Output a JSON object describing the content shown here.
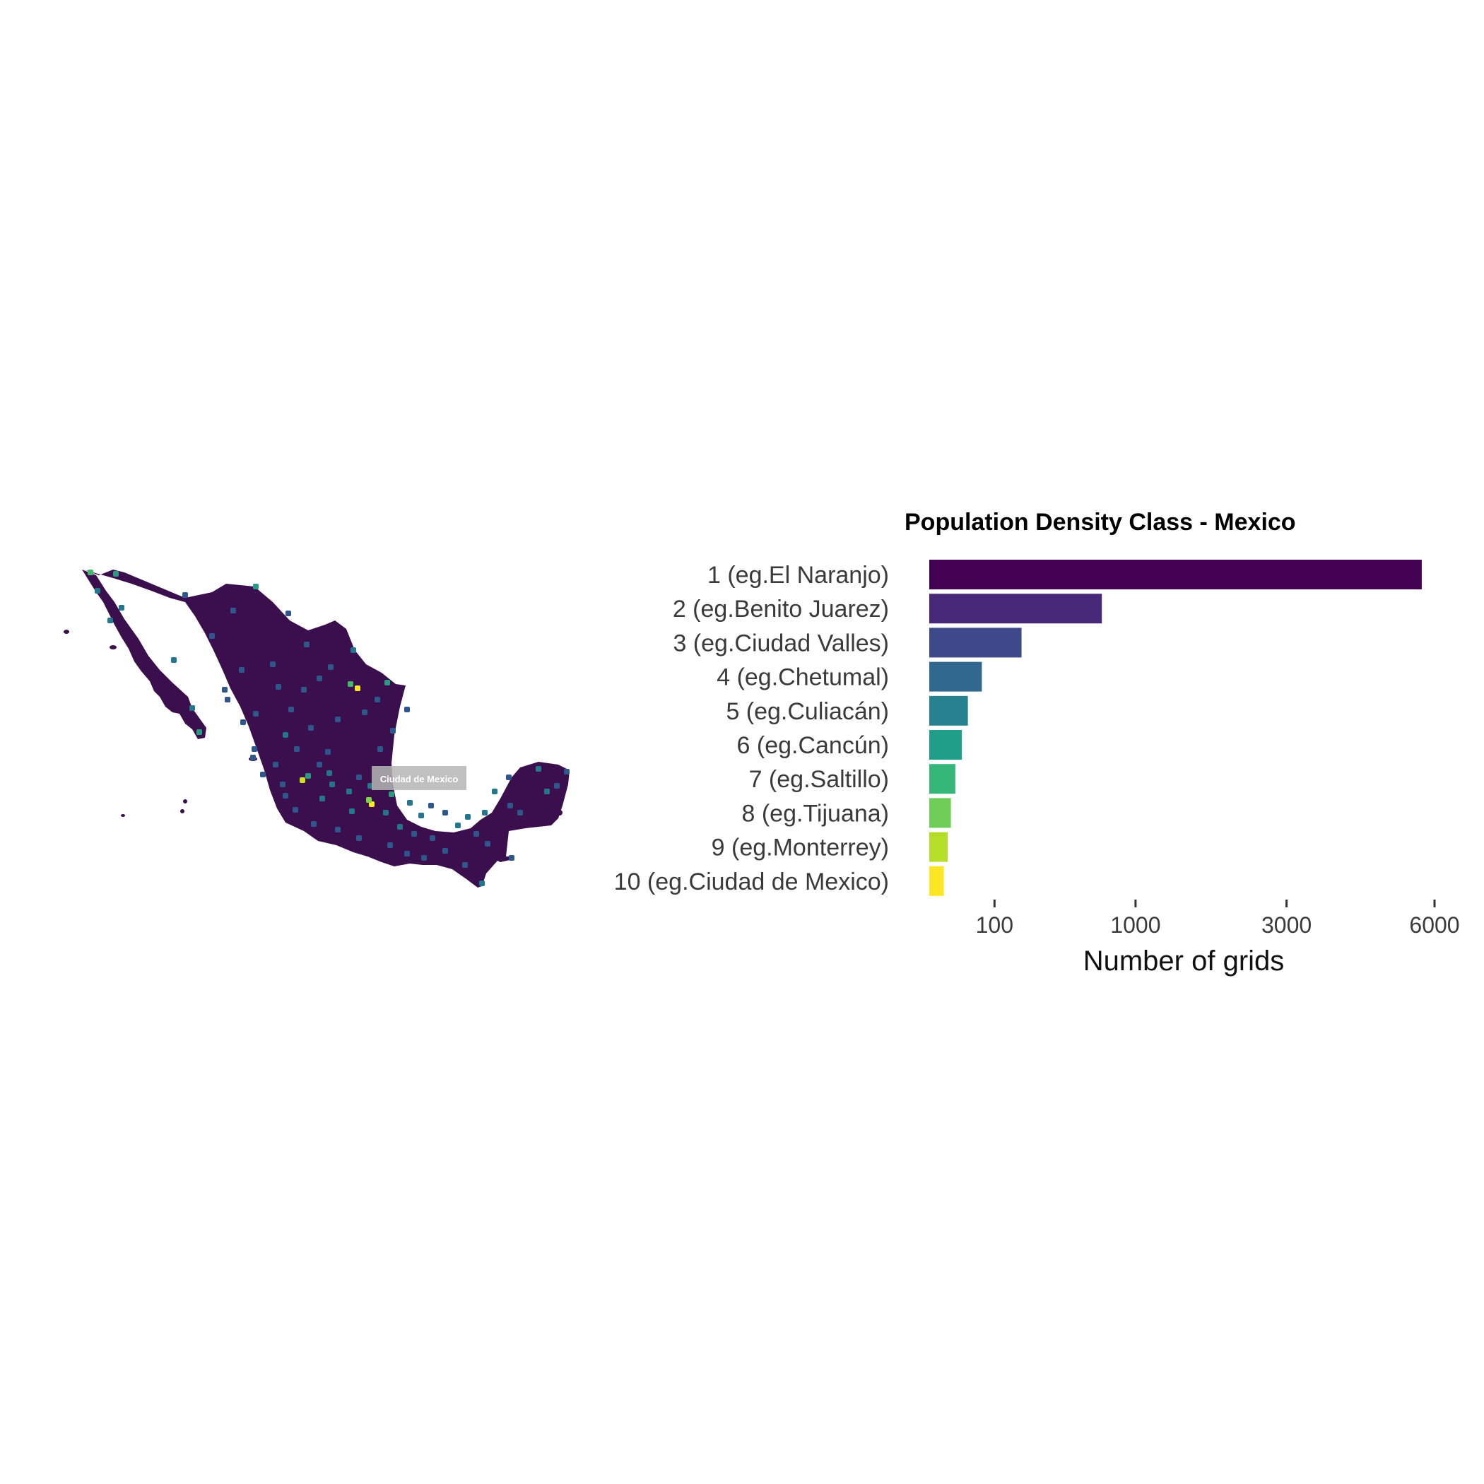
{
  "map": {
    "label": "Ciudad de Mexico",
    "base_color": "#3b0f4d",
    "hotspot_colors": [
      "#32306e",
      "#2f578c",
      "#23768c",
      "#2a9a83",
      "#43b86b",
      "#7ed34a",
      "#cde11d",
      "#fde725"
    ]
  },
  "chart_data": {
    "type": "bar",
    "orientation": "horizontal",
    "title": "Population Density Class - Mexico",
    "xlabel": "Number of grids",
    "ylabel": "",
    "x_scale": "sqrt",
    "xlim": [
      0,
      6000
    ],
    "x_ticks": [
      100,
      1000,
      3000,
      6000
    ],
    "x_tick_labels": [
      "100",
      "1000",
      "3000",
      "6000"
    ],
    "grid": false,
    "categories": [
      "1 (eg.El Naranjo)",
      "2 (eg.Benito Juarez)",
      "3 (eg.Ciudad Valles)",
      "4 (eg.Chetumal)",
      "5 (eg.Culiacán)",
      "6 (eg.Cancún)",
      "7 (eg.Saltillo)",
      "8 (eg.Tijuana)",
      "9 (eg.Monterrey)",
      "10 (eg.Ciudad de Mexico)"
    ],
    "values": [
      5700,
      700,
      200,
      65,
      35,
      25,
      16,
      11,
      8,
      5
    ],
    "colors": [
      "#440154",
      "#482878",
      "#3e4989",
      "#31688e",
      "#26828e",
      "#1f9e89",
      "#35b779",
      "#6ece58",
      "#b5de2b",
      "#fde725"
    ]
  }
}
